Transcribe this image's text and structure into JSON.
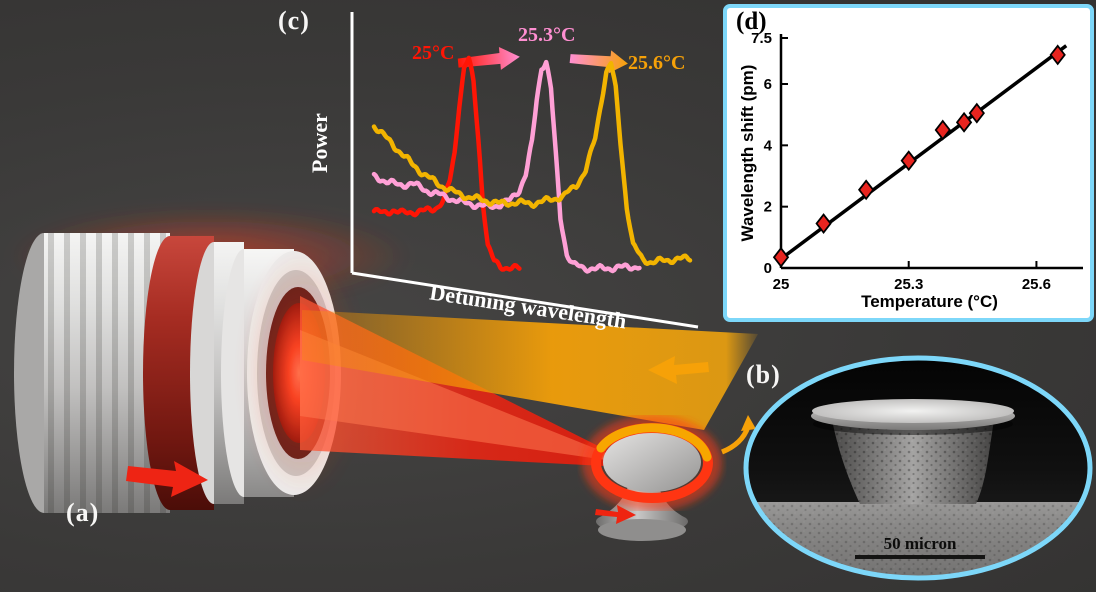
{
  "figure": {
    "background_color": "#3a3938",
    "accent_cyan": "#7dd7f9"
  },
  "panel_a": {
    "label": "(a)"
  },
  "panel_b": {
    "label": "(b)",
    "scale_bar_label": "50 micron"
  },
  "panel_c": {
    "label": "(c)",
    "xlabel": "Detuning wavelength",
    "ylabel": "Power",
    "annotations": [
      {
        "text": "25°C",
        "color": "#ff1505"
      },
      {
        "text": "25.3°C",
        "color": "#ff8fd2"
      },
      {
        "text": "25.6°C",
        "color": "#f6a108"
      }
    ]
  },
  "panel_d": {
    "label": "(d)",
    "xlabel": "Temperature (°C)",
    "ylabel": "Wavelength shift (pm)"
  },
  "chart_data": [
    {
      "type": "line",
      "panel": "c",
      "title": "",
      "xlabel": "Detuning wavelength",
      "ylabel": "Power",
      "xlim": [
        0,
        1
      ],
      "ylim": [
        0,
        1
      ],
      "grid": false,
      "legend": "inline temperature annotations",
      "series": [
        {
          "name": "25°C",
          "color": "#ff1505",
          "x": [
            0.0,
            0.03,
            0.06,
            0.09,
            0.12,
            0.15,
            0.18,
            0.2,
            0.22,
            0.24,
            0.255,
            0.27,
            0.285,
            0.3,
            0.315,
            0.33,
            0.345,
            0.36,
            0.38,
            0.4,
            0.43,
            0.46
          ],
          "y": [
            0.28,
            0.27,
            0.285,
            0.27,
            0.275,
            0.28,
            0.285,
            0.3,
            0.33,
            0.42,
            0.55,
            0.78,
            0.95,
            0.99,
            0.88,
            0.62,
            0.32,
            0.12,
            0.045,
            0.02,
            0.015,
            0.01
          ]
        },
        {
          "name": "25.3°C",
          "color": "#ffa0d6",
          "x": [
            0.0,
            0.04,
            0.08,
            0.12,
            0.16,
            0.2,
            0.24,
            0.28,
            0.32,
            0.36,
            0.4,
            0.43,
            0.46,
            0.48,
            0.5,
            0.515,
            0.53,
            0.545,
            0.56,
            0.575,
            0.59,
            0.61,
            0.63,
            0.66,
            0.7,
            0.76,
            0.82,
            0.84
          ],
          "y": [
            0.44,
            0.42,
            0.4,
            0.41,
            0.38,
            0.36,
            0.34,
            0.32,
            0.31,
            0.3,
            0.31,
            0.33,
            0.38,
            0.45,
            0.6,
            0.8,
            0.95,
            0.98,
            0.85,
            0.55,
            0.25,
            0.08,
            0.03,
            0.015,
            0.01,
            0.015,
            0.02,
            0.02
          ]
        },
        {
          "name": "25.6°C",
          "color": "#f2b400",
          "x": [
            0.0,
            0.04,
            0.08,
            0.12,
            0.16,
            0.2,
            0.25,
            0.3,
            0.35,
            0.4,
            0.45,
            0.5,
            0.55,
            0.6,
            0.64,
            0.67,
            0.7,
            0.72,
            0.735,
            0.75,
            0.765,
            0.78,
            0.8,
            0.82,
            0.85,
            0.88,
            0.92,
            0.96,
            1.0
          ],
          "y": [
            0.68,
            0.62,
            0.56,
            0.5,
            0.45,
            0.41,
            0.37,
            0.345,
            0.33,
            0.315,
            0.32,
            0.315,
            0.33,
            0.35,
            0.4,
            0.47,
            0.62,
            0.8,
            0.93,
            0.97,
            0.85,
            0.6,
            0.3,
            0.12,
            0.055,
            0.04,
            0.05,
            0.055,
            0.06
          ]
        }
      ]
    },
    {
      "type": "scatter",
      "panel": "d",
      "title": "",
      "xlabel": "Temperature (°C)",
      "ylabel": "Wavelength shift (pm)",
      "xlim": [
        25,
        25.7
      ],
      "ylim": [
        0,
        7.5
      ],
      "xticks": [
        25,
        25.3,
        25.6
      ],
      "yticks": [
        0,
        2,
        4,
        6,
        7.5
      ],
      "grid": false,
      "points": {
        "x": [
          25.0,
          25.1,
          25.2,
          25.3,
          25.38,
          25.43,
          25.46,
          25.65
        ],
        "y": [
          0.35,
          1.45,
          2.55,
          3.5,
          4.5,
          4.75,
          5.05,
          6.95
        ]
      },
      "fit_line": {
        "x": [
          25.0,
          25.67
        ],
        "y": [
          0.3,
          7.25
        ]
      },
      "marker": {
        "shape": "diamond",
        "fill": "#e8241f",
        "edge": "#000000"
      }
    }
  ]
}
